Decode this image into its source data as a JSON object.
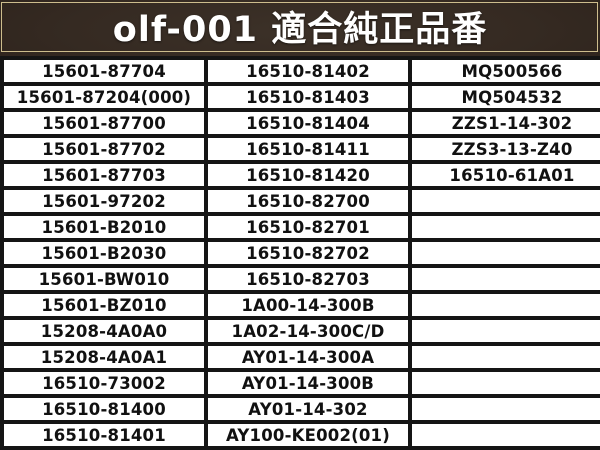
{
  "header": {
    "title": "olf-001 適合純正品番"
  },
  "colors": {
    "page_background": "#32271f",
    "header_background": "#352a22",
    "gold_frame": "#cdbd8d",
    "title_text": "#ffffff",
    "cell_background": "#ffffff",
    "cell_border": "#151515",
    "cell_text": "#111111"
  },
  "table": {
    "columns": 3,
    "rows": [
      [
        "15601-87704",
        "16510-81402",
        "MQ500566"
      ],
      [
        "15601-87204(000)",
        "16510-81403",
        "MQ504532"
      ],
      [
        "15601-87700",
        "16510-81404",
        "ZZS1-14-302"
      ],
      [
        "15601-87702",
        "16510-81411",
        "ZZS3-13-Z40"
      ],
      [
        "15601-87703",
        "16510-81420",
        "16510-61A01"
      ],
      [
        "15601-97202",
        "16510-82700",
        ""
      ],
      [
        "15601-B2010",
        "16510-82701",
        ""
      ],
      [
        "15601-B2030",
        "16510-82702",
        ""
      ],
      [
        "15601-BW010",
        "16510-82703",
        ""
      ],
      [
        "15601-BZ010",
        "1A00-14-300B",
        ""
      ],
      [
        "15208-4A0A0",
        "1A02-14-300C/D",
        ""
      ],
      [
        "15208-4A0A1",
        "AY01-14-300A",
        ""
      ],
      [
        "16510-73002",
        "AY01-14-300B",
        ""
      ],
      [
        "16510-81400",
        "AY01-14-302",
        ""
      ],
      [
        "16510-81401",
        "AY100-KE002(01)",
        ""
      ]
    ]
  }
}
